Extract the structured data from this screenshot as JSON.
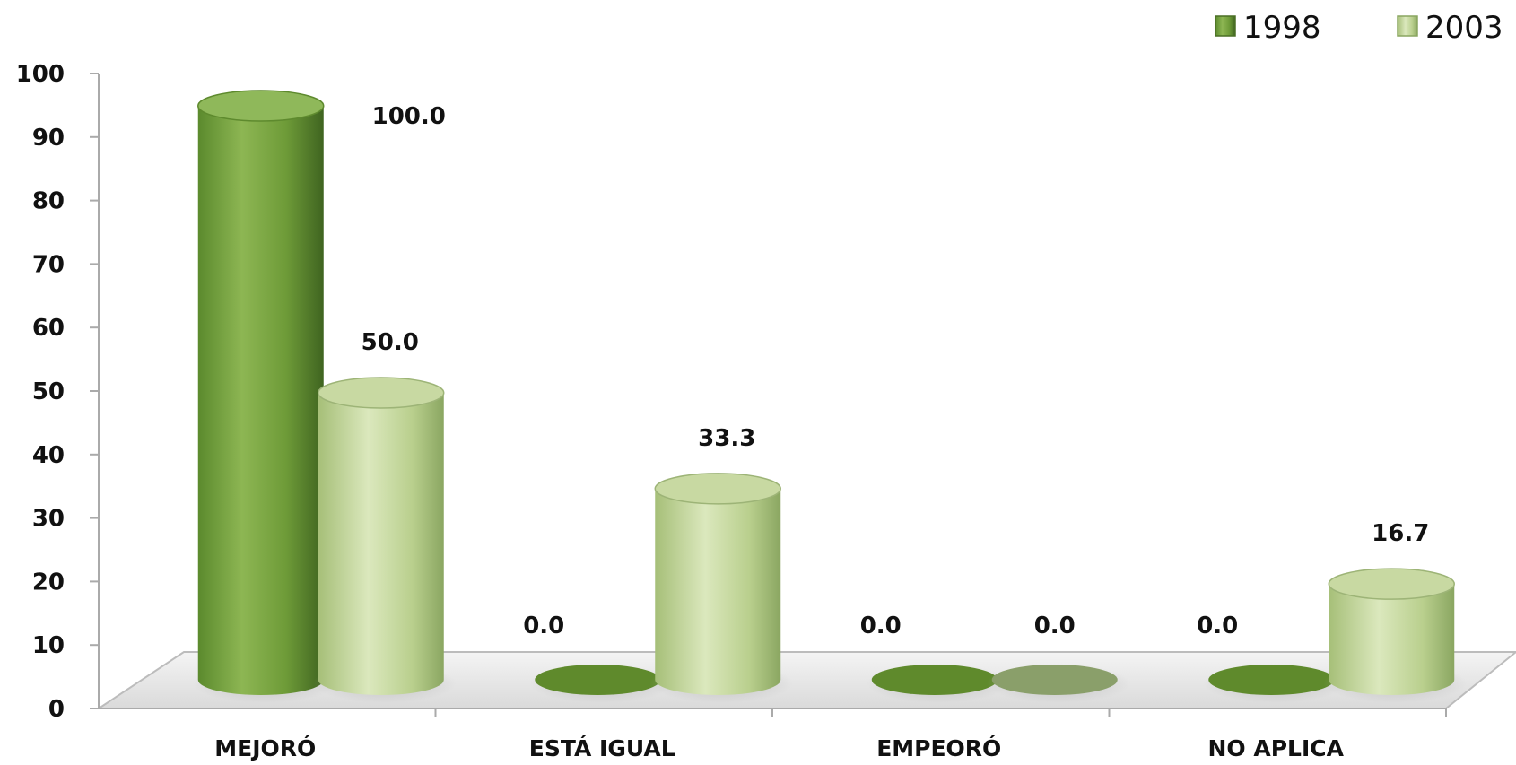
{
  "chart_data": {
    "type": "bar",
    "style": "3d-cylinder",
    "categories": [
      "MEJORÓ",
      "ESTÁ IGUAL",
      "EMPEORÓ",
      "NO APLICA"
    ],
    "series": [
      {
        "name": "1998",
        "values": [
          100.0,
          0.0,
          0.0,
          0.0
        ],
        "labels": [
          "100.0",
          "0.0",
          "0.0",
          "0.0"
        ],
        "color": "#6f9a3a"
      },
      {
        "name": "2003",
        "values": [
          50.0,
          33.3,
          0.0,
          16.7
        ],
        "labels": [
          "50.0",
          "33.3",
          "0.0",
          "16.7"
        ],
        "color": "#b7cd8a"
      }
    ],
    "yticks": [
      "0",
      "10",
      "20",
      "30",
      "40",
      "50",
      "60",
      "70",
      "80",
      "90",
      "100"
    ],
    "ylim": [
      0,
      100
    ],
    "grid": false,
    "legend_position": "top-right",
    "title": "",
    "xlabel": "",
    "ylabel": ""
  }
}
